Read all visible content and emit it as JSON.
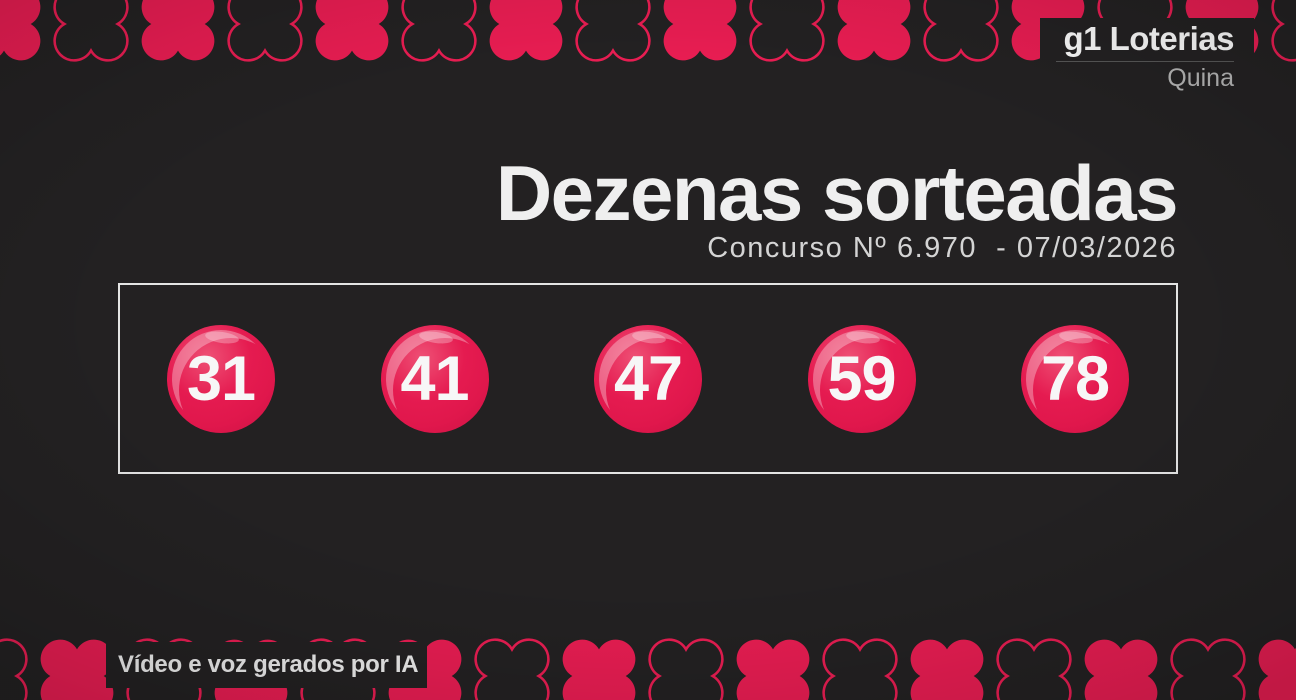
{
  "header": {
    "brand": "g1 Loterias",
    "edition": "Quina"
  },
  "main": {
    "title": "Dezenas sorteadas",
    "contest_label": "Concurso Nº 6.970  - 07/03/2026",
    "numbers": [
      "31",
      "41",
      "47",
      "59",
      "78"
    ]
  },
  "footer": {
    "ai_disclaimer": "Vídeo e voz gerados por IA"
  },
  "decor": {
    "border_icon": "four-leaf-clover-icon"
  },
  "colors": {
    "background": "#232122",
    "accent_pink": "#e81d52",
    "ball_main": "#e51b50",
    "ball_highlight": "#ee6287",
    "title_text": "#efefef",
    "subtitle_text": "#d4d4d4",
    "muted_text": "#b3b3b3",
    "panel_border": "#e4e4e4"
  }
}
